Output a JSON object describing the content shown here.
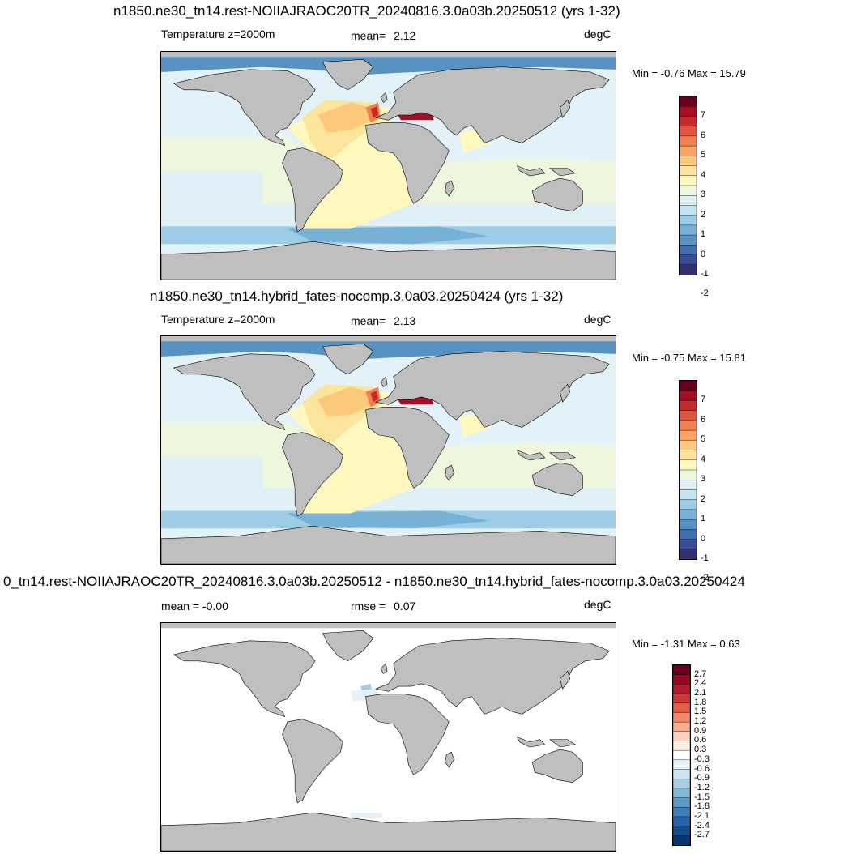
{
  "panels": [
    {
      "title": "n1850.ne30_tn14.rest-NOIIAJRAOC20TR_20240816.3.0a03b.20250512 (yrs 1-32)",
      "left_label": "Temperature z=2000m",
      "center_label_name": "mean=",
      "center_label_value": "2.12",
      "units": "degC",
      "minmax": "Min =  -0.76 Max =  15.79",
      "colorbar_labels": [
        "7",
        "6",
        "5",
        "4",
        "3",
        "2",
        "1",
        "0",
        "-1",
        "-2"
      ],
      "colorbar_colors": [
        "#67001f",
        "#a50f26",
        "#c62b2b",
        "#e0553c",
        "#f07f4d",
        "#f8a561",
        "#fcc87c",
        "#fde49c",
        "#fff8bf",
        "#eef7dd",
        "#dff0f6",
        "#c2e3ef",
        "#9dcde4",
        "#77b2d6",
        "#5792c3",
        "#3f6faf",
        "#3a4c97",
        "#33306f"
      ],
      "ocean_bg": "#e3f1f8",
      "land_color": "#bfbfbf"
    },
    {
      "title": "n1850.ne30_tn14.hybrid_fates-nocomp.3.0a03.20250424 (yrs 1-32)",
      "left_label": "Temperature z=2000m",
      "center_label_name": "mean=",
      "center_label_value": "2.13",
      "units": "degC",
      "minmax": "Min =  -0.75 Max =  15.81",
      "colorbar_labels": [
        "7",
        "6",
        "5",
        "4",
        "3",
        "2",
        "1",
        "0",
        "-1",
        "-2"
      ],
      "colorbar_colors": [
        "#67001f",
        "#a50f26",
        "#c62b2b",
        "#e0553c",
        "#f07f4d",
        "#f8a561",
        "#fcc87c",
        "#fde49c",
        "#fff8bf",
        "#eef7dd",
        "#dff0f6",
        "#c2e3ef",
        "#9dcde4",
        "#77b2d6",
        "#5792c3",
        "#3f6faf",
        "#3a4c97",
        "#33306f"
      ],
      "ocean_bg": "#e3f1f8",
      "land_color": "#bfbfbf"
    },
    {
      "title": "0_tn14.rest-NOIIAJRAOC20TR_20240816.3.0a03b.20250512 - n1850.ne30_tn14.hybrid_fates-nocomp.3.0a03.20250424",
      "left_label": "mean =  -0.00",
      "center_label_name": "rmse =",
      "center_label_value": "0.07",
      "units": "degC",
      "minmax": "Min =  -1.31 Max =   0.63",
      "colorbar_labels": [
        "2.7",
        "2.4",
        "2.1",
        "1.8",
        "1.5",
        "1.2",
        "0.9",
        "0.6",
        "0.3",
        "-0.3",
        "-0.6",
        "-0.9",
        "-1.2",
        "-1.5",
        "-1.8",
        "-2.1",
        "-2.4",
        "-2.7"
      ],
      "colorbar_colors": [
        "#67001f",
        "#99051f",
        "#b6182b",
        "#cc3b3a",
        "#de6049",
        "#ee8a6a",
        "#f7ae8c",
        "#fcd2bc",
        "#fdeee4",
        "#ffffff",
        "#e6f0f8",
        "#cde2f0",
        "#a8cee4",
        "#80b8d8",
        "#5a9dca",
        "#3b80ba",
        "#2764a5",
        "#144b8a",
        "#0b3370"
      ],
      "ocean_bg": "#ffffff",
      "land_color": "#bfbfbf"
    }
  ]
}
